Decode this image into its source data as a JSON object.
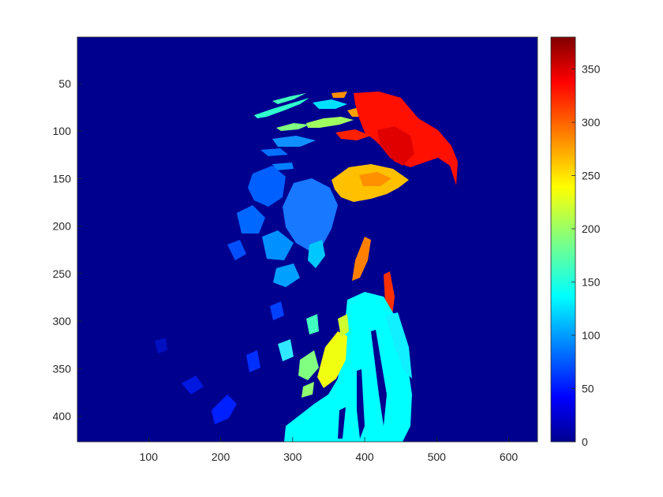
{
  "image": {
    "x_ticks": [
      "100",
      "200",
      "300",
      "400",
      "500",
      "600"
    ],
    "y_ticks": [
      "50",
      "100",
      "150",
      "200",
      "250",
      "300",
      "350",
      "400"
    ],
    "x_range": [
      1,
      640
    ],
    "y_range": [
      1,
      427
    ],
    "background_color": "#00008f",
    "colormap": "jet"
  },
  "colorbar": {
    "ticks": [
      "0",
      "50",
      "100",
      "150",
      "200",
      "250",
      "300",
      "350"
    ],
    "range": [
      0,
      380
    ],
    "colors": [
      "#00008f",
      "#0000ff",
      "#0080ff",
      "#00ffff",
      "#80ff80",
      "#ffff00",
      "#ff8000",
      "#ff0000",
      "#800000"
    ]
  }
}
